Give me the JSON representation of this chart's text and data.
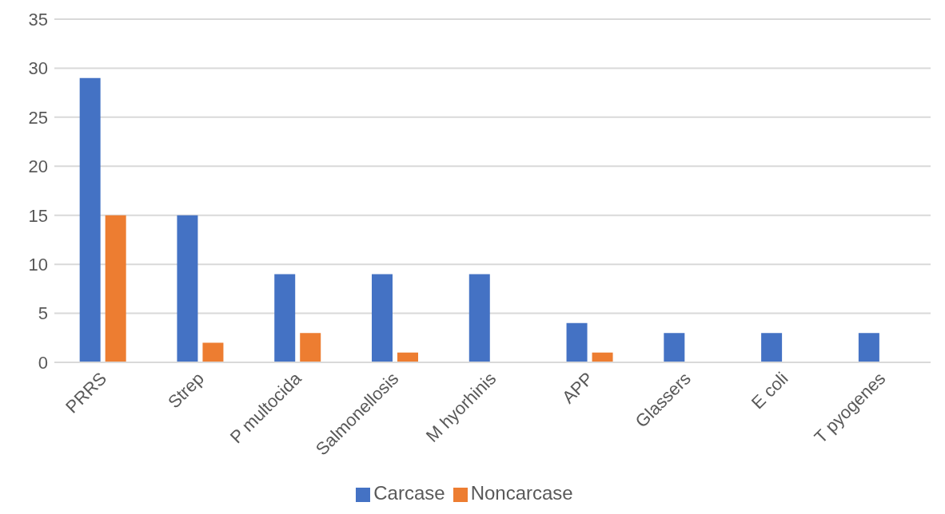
{
  "chart_data": {
    "type": "bar",
    "categories": [
      "PRRS",
      "Strep",
      "P multocida",
      "Salmonellosis",
      "M hyorhinis",
      "APP",
      "Glassers",
      "E coli",
      "T pyogenes"
    ],
    "series": [
      {
        "name": "Carcase",
        "color": "#4472c4",
        "values": [
          29,
          15,
          9,
          9,
          9,
          4,
          3,
          3,
          3
        ]
      },
      {
        "name": "Noncarcase",
        "color": "#ed7d31",
        "values": [
          15,
          2,
          3,
          1,
          0,
          1,
          0,
          0,
          0
        ]
      }
    ],
    "ylim": [
      0,
      35
    ],
    "yticks": [
      0,
      5,
      10,
      15,
      20,
      25,
      30,
      35
    ],
    "grid": "y",
    "legend": "bottom"
  }
}
